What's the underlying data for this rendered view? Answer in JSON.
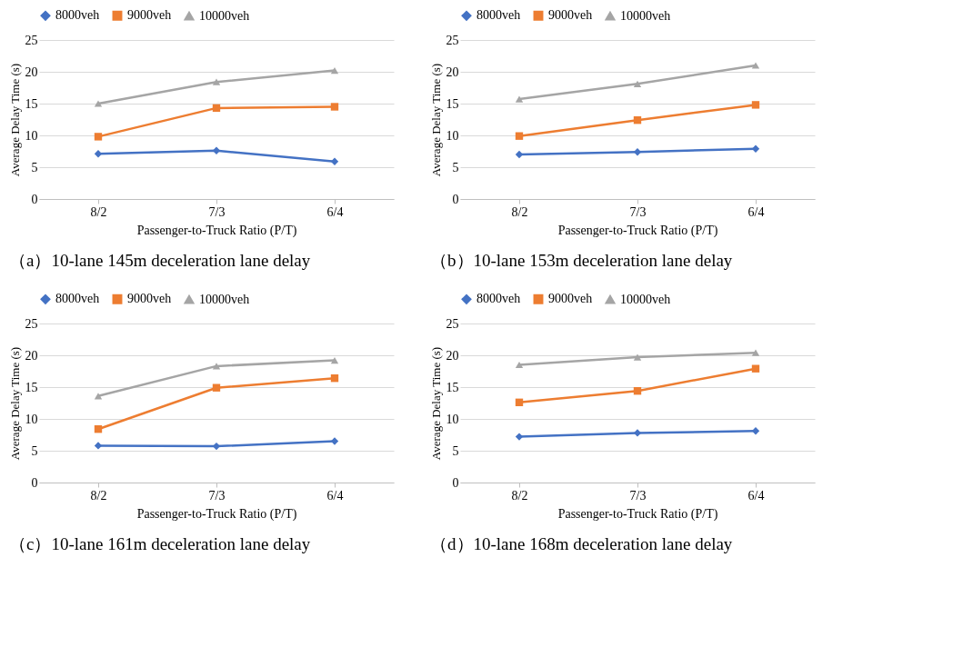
{
  "chart_data": [
    {
      "type": "line",
      "title": "（a）10-lane 145m deceleration lane delay",
      "xlabel": "Passenger-to-Truck Ratio (P/T)",
      "ylabel": "Average Delay Time (s)",
      "categories": [
        "8/2",
        "7/3",
        "6/4"
      ],
      "ylim": [
        0,
        25
      ],
      "yticks": [
        0,
        5,
        10,
        15,
        20,
        25
      ],
      "grid": "y",
      "legend": "top",
      "series": [
        {
          "name": "8000veh",
          "color": "#4472c4",
          "marker": "diamond",
          "values": [
            7.1,
            7.6,
            5.9
          ]
        },
        {
          "name": "9000veh",
          "color": "#ed7d31",
          "marker": "square",
          "values": [
            9.8,
            14.3,
            14.5
          ]
        },
        {
          "name": "10000veh",
          "color": "#a5a5a5",
          "marker": "triangle",
          "values": [
            15.0,
            18.4,
            20.2
          ]
        }
      ]
    },
    {
      "type": "line",
      "title": "（b）10-lane 153m deceleration lane delay",
      "xlabel": "Passenger-to-Truck Ratio (P/T)",
      "ylabel": "Average Delay Time (s)",
      "categories": [
        "8/2",
        "7/3",
        "6/4"
      ],
      "ylim": [
        0,
        25
      ],
      "yticks": [
        0,
        5,
        10,
        15,
        20,
        25
      ],
      "grid": "y",
      "legend": "top",
      "series": [
        {
          "name": "8000veh",
          "color": "#4472c4",
          "marker": "diamond",
          "values": [
            7.0,
            7.4,
            7.9
          ]
        },
        {
          "name": "9000veh",
          "color": "#ed7d31",
          "marker": "square",
          "values": [
            9.9,
            12.4,
            14.8
          ]
        },
        {
          "name": "10000veh",
          "color": "#a5a5a5",
          "marker": "triangle",
          "values": [
            15.7,
            18.1,
            21.0
          ]
        }
      ]
    },
    {
      "type": "line",
      "title": "（c）10-lane 161m deceleration lane delay",
      "xlabel": "Passenger-to-Truck Ratio (P/T)",
      "ylabel": "Average Delay Time (s)",
      "categories": [
        "8/2",
        "7/3",
        "6/4"
      ],
      "ylim": [
        0,
        25
      ],
      "yticks": [
        0,
        5,
        10,
        15,
        20,
        25
      ],
      "grid": "y",
      "legend": "top",
      "series": [
        {
          "name": "8000veh",
          "color": "#4472c4",
          "marker": "diamond",
          "values": [
            5.8,
            5.7,
            6.5
          ]
        },
        {
          "name": "9000veh",
          "color": "#ed7d31",
          "marker": "square",
          "values": [
            8.4,
            14.9,
            16.4
          ]
        },
        {
          "name": "10000veh",
          "color": "#a5a5a5",
          "marker": "triangle",
          "values": [
            13.6,
            18.3,
            19.2
          ]
        }
      ]
    },
    {
      "type": "line",
      "title": "（d）10-lane 168m deceleration lane delay",
      "xlabel": "Passenger-to-Truck Ratio (P/T)",
      "ylabel": "Average Delay Time (s)",
      "categories": [
        "8/2",
        "7/3",
        "6/4"
      ],
      "ylim": [
        0,
        25
      ],
      "yticks": [
        0,
        5,
        10,
        15,
        20,
        25
      ],
      "grid": "y",
      "legend": "top",
      "series": [
        {
          "name": "8000veh",
          "color": "#4472c4",
          "marker": "diamond",
          "values": [
            7.2,
            7.8,
            8.1
          ]
        },
        {
          "name": "9000veh",
          "color": "#ed7d31",
          "marker": "square",
          "values": [
            12.6,
            14.4,
            17.9
          ]
        },
        {
          "name": "10000veh",
          "color": "#a5a5a5",
          "marker": "triangle",
          "values": [
            18.5,
            19.7,
            20.4
          ]
        }
      ]
    }
  ]
}
